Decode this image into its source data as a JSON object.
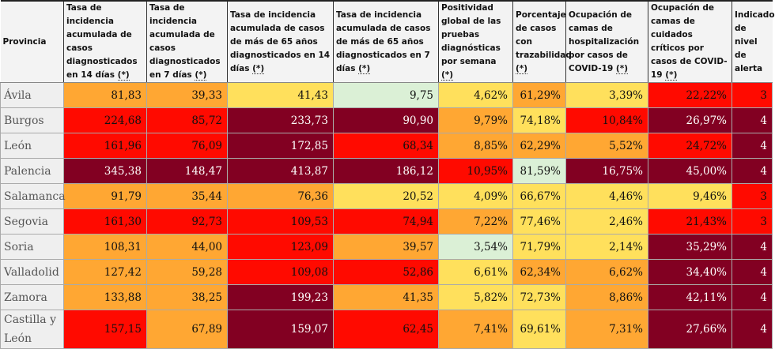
{
  "header": {
    "columns": [
      {
        "label": "Provincia",
        "note": ""
      },
      {
        "label": "Tasa de incidencia acumulada de casos diagnosticados en 14 días ",
        "note": "(*)"
      },
      {
        "label": "Tasa de incidencia acumulada de casos diagnosticados en 7 días ",
        "note": "(*)"
      },
      {
        "label": "Tasa de incidencia acumulada de casos de más de 65 años diagnosticados en 14 días ",
        "note": "(*)"
      },
      {
        "label": "Tasa de incidencia acumulada de casos de más de 65 años diagnosticados en 7 días ",
        "note": "(*)"
      },
      {
        "label": "Positividad global de las pruebas diagnósticas por semana ",
        "note": "(*)"
      },
      {
        "label": "Porcentaje de casos con trazabilidad ",
        "note": "(*)"
      },
      {
        "label": "Ocupación de camas de hospitalización por casos de COVID-19 ",
        "note": "(*)"
      },
      {
        "label": "Ocupación de camas de cuidados críticos por casos de COVID-19 ",
        "note": "(*)"
      },
      {
        "label": "Indicador de nivel de alerta",
        "note": ""
      }
    ]
  },
  "level_colors": {
    "G": "#dbf0d6",
    "Y": "#ffe05c",
    "O": "#ffa733",
    "R": "#ff0a00",
    "D": "#820022"
  },
  "rows": [
    {
      "province": "Ávila",
      "values": [
        "81,83",
        "39,33",
        "41,43",
        "9,75",
        "4,62%",
        "61,29%",
        "3,39%",
        "22,22%",
        "3"
      ],
      "levels": [
        "O",
        "O",
        "Y",
        "G",
        "Y",
        "O",
        "Y",
        "R",
        "R"
      ]
    },
    {
      "province": "Burgos",
      "values": [
        "224,68",
        "85,72",
        "233,73",
        "90,90",
        "9,79%",
        "74,18%",
        "10,84%",
        "26,97%",
        "4"
      ],
      "levels": [
        "R",
        "R",
        "D",
        "D",
        "O",
        "Y",
        "R",
        "D",
        "D"
      ]
    },
    {
      "province": "León",
      "values": [
        "161,96",
        "76,09",
        "172,85",
        "68,34",
        "8,85%",
        "62,29%",
        "5,52%",
        "24,72%",
        "4"
      ],
      "levels": [
        "R",
        "R",
        "D",
        "R",
        "O",
        "O",
        "O",
        "R",
        "D"
      ]
    },
    {
      "province": "Palencia",
      "values": [
        "345,38",
        "148,47",
        "413,87",
        "186,12",
        "10,95%",
        "81,59%",
        "16,75%",
        "45,00%",
        "4"
      ],
      "levels": [
        "D",
        "D",
        "D",
        "D",
        "R",
        "G",
        "D",
        "D",
        "D"
      ]
    },
    {
      "province": "Salamanca",
      "values": [
        "91,79",
        "35,44",
        "76,36",
        "20,52",
        "4,09%",
        "66,67%",
        "4,46%",
        "9,46%",
        "3"
      ],
      "levels": [
        "O",
        "O",
        "O",
        "Y",
        "Y",
        "Y",
        "Y",
        "Y",
        "R"
      ]
    },
    {
      "province": "Segovia",
      "values": [
        "161,30",
        "92,73",
        "109,53",
        "74,94",
        "7,22%",
        "77,46%",
        "2,46%",
        "21,43%",
        "3"
      ],
      "levels": [
        "R",
        "R",
        "R",
        "R",
        "O",
        "Y",
        "Y",
        "R",
        "R"
      ]
    },
    {
      "province": "Soria",
      "values": [
        "108,31",
        "44,00",
        "123,09",
        "39,57",
        "3,54%",
        "71,79%",
        "2,14%",
        "35,29%",
        "4"
      ],
      "levels": [
        "O",
        "O",
        "R",
        "O",
        "G",
        "Y",
        "Y",
        "D",
        "D"
      ]
    },
    {
      "province": "Valladolid",
      "values": [
        "127,42",
        "59,28",
        "109,08",
        "52,86",
        "6,61%",
        "62,34%",
        "6,62%",
        "34,40%",
        "4"
      ],
      "levels": [
        "O",
        "O",
        "R",
        "R",
        "Y",
        "O",
        "O",
        "D",
        "D"
      ]
    },
    {
      "province": "Zamora",
      "values": [
        "133,88",
        "38,25",
        "199,23",
        "41,35",
        "5,82%",
        "72,73%",
        "8,86%",
        "42,11%",
        "4"
      ],
      "levels": [
        "O",
        "O",
        "D",
        "O",
        "Y",
        "Y",
        "O",
        "D",
        "D"
      ]
    },
    {
      "province": "Castilla y León",
      "values": [
        "157,15",
        "67,89",
        "159,07",
        "62,45",
        "7,41%",
        "69,61%",
        "7,31%",
        "27,66%",
        "4"
      ],
      "levels": [
        "R",
        "O",
        "D",
        "R",
        "O",
        "Y",
        "O",
        "D",
        "D"
      ]
    }
  ]
}
